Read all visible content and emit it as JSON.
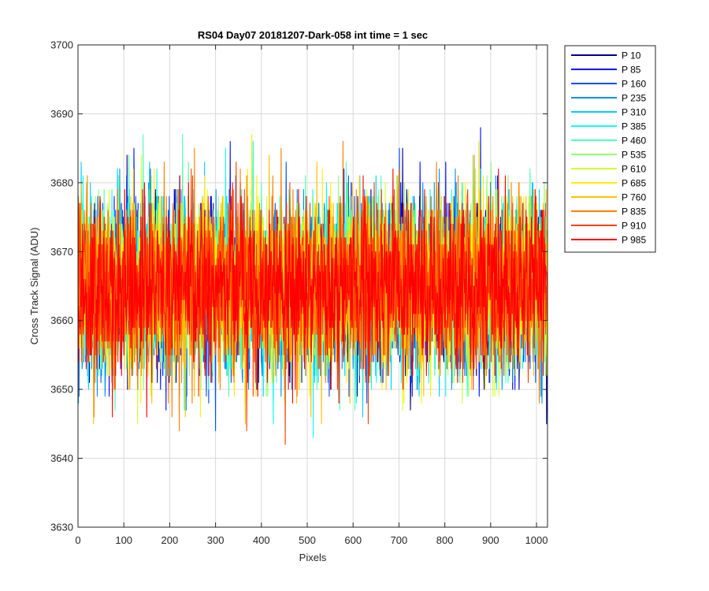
{
  "chart_data": {
    "type": "line",
    "title": "RS04 Day07 20181207-Dark-058 int time = 1 sec",
    "xlabel": "Pixels",
    "ylabel": "Cross Track Signal (ADU)",
    "xlim": [
      0,
      1024
    ],
    "ylim": [
      3630,
      3700
    ],
    "xticks": [
      0,
      100,
      200,
      300,
      400,
      500,
      600,
      700,
      800,
      900,
      1000
    ],
    "yticks": [
      3630,
      3640,
      3650,
      3660,
      3670,
      3680,
      3690,
      3700
    ],
    "grid": true,
    "legend_placement": "outside-right",
    "series_stats": {
      "mean": 3665,
      "noise_sd": 6.2,
      "n_points": 1024
    },
    "series": [
      {
        "name": "P 10",
        "color": "#00008f"
      },
      {
        "name": "P 85",
        "color": "#0010ff"
      },
      {
        "name": "P 160",
        "color": "#0050ff"
      },
      {
        "name": "P 235",
        "color": "#0090ff"
      },
      {
        "name": "P 310",
        "color": "#00cfff"
      },
      {
        "name": "P 385",
        "color": "#10ffef"
      },
      {
        "name": "P 460",
        "color": "#50ffaf"
      },
      {
        "name": "P 535",
        "color": "#8fff70"
      },
      {
        "name": "P 610",
        "color": "#cfff30"
      },
      {
        "name": "P 685",
        "color": "#ffef00"
      },
      {
        "name": "P 760",
        "color": "#ffbf00"
      },
      {
        "name": "P 835",
        "color": "#ff8000"
      },
      {
        "name": "P 910",
        "color": "#ff4000"
      },
      {
        "name": "P 985",
        "color": "#ff0000"
      }
    ]
  }
}
